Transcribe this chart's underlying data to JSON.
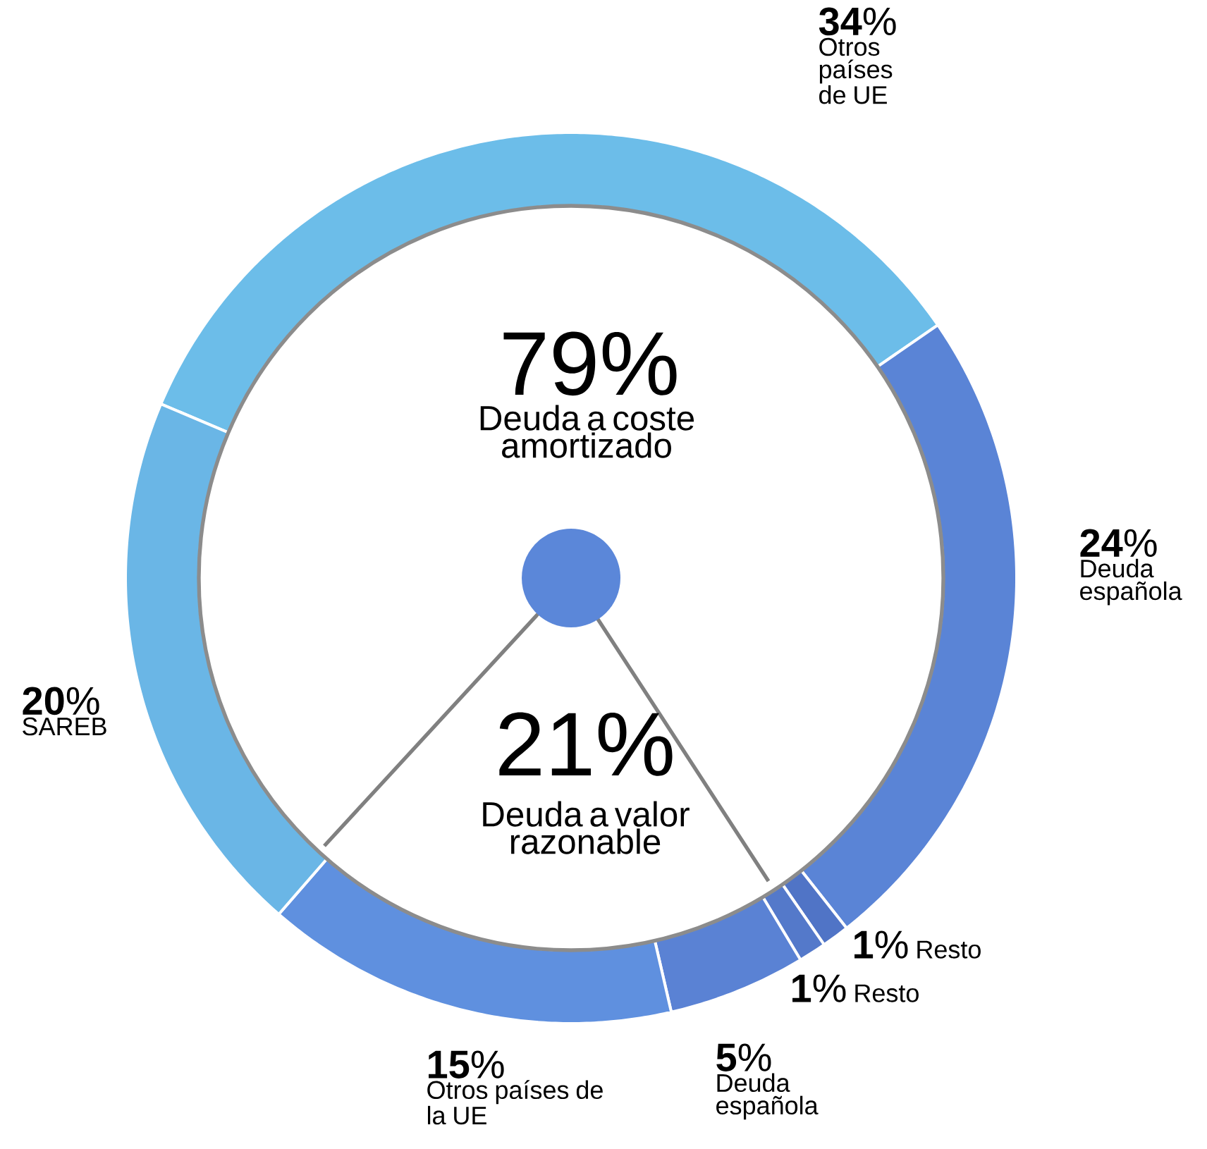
{
  "chart_data": {
    "type": "donut",
    "categories": [
      "Otros países de UE",
      "Deuda española",
      "Resto",
      "Resto",
      "Deuda española",
      "Otros países de la UE",
      "SAREB"
    ],
    "values": [
      34,
      24,
      1,
      1,
      5,
      15,
      20
    ],
    "value_labels": [
      "**34**%",
      "**24**%",
      "**1**%",
      "**1**%",
      "**5**%",
      "**15**%",
      "**20**%"
    ],
    "colors": [
      "#6cbde9",
      "#5a84d6",
      "#5074c6",
      "#5479ca",
      "#5a82d4",
      "#5f90df",
      "#6ab6e6"
    ],
    "annotations": [
      "79%",
      "Deuda a coste amortizado",
      "21%",
      "Deuda a valor razonable"
    ]
  }
}
